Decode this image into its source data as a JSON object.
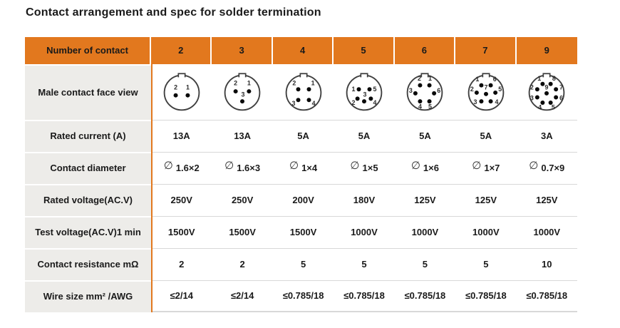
{
  "title": "Contact arrangement and spec for solder termination",
  "colors": {
    "orange": "#E2781E",
    "left_column_bg": "#EDECE9",
    "row_line": "#D8D8D8",
    "text": "#1A1A1A",
    "diagram_stroke": "#3F3F3F",
    "pin_dot": "#0A0A0A"
  },
  "table": {
    "header": {
      "label": "Number of contact",
      "columns": [
        "2",
        "3",
        "4",
        "5",
        "6",
        "7",
        "9"
      ]
    },
    "rows": [
      {
        "label": "Male contact face view",
        "type": "diagram"
      },
      {
        "label": "Rated current (A)",
        "values": [
          "13A",
          "13A",
          "5A",
          "5A",
          "5A",
          "5A",
          "3A"
        ]
      },
      {
        "label": "Contact diameter",
        "type": "diameter",
        "symbol": "∅",
        "values": [
          "1.6×2",
          "1.6×3",
          "1×4",
          "1×5",
          "1×6",
          "1×7",
          "0.7×9"
        ]
      },
      {
        "label": "Rated voltage(AC.V)",
        "values": [
          "250V",
          "250V",
          "200V",
          "180V",
          "125V",
          "125V",
          "125V"
        ]
      },
      {
        "label": "Test voltage(AC.V)1 min",
        "values": [
          "1500V",
          "1500V",
          "1500V",
          "1000V",
          "1000V",
          "1000V",
          "1000V"
        ]
      },
      {
        "label": "Contact resistance mΩ",
        "values": [
          "2",
          "2",
          "5",
          "5",
          "5",
          "5",
          "10"
        ]
      },
      {
        "label": "Wire size mm² /AWG",
        "values": [
          "≤2/14",
          "≤2/14",
          "≤0.785/18",
          "≤0.785/18",
          "≤0.785/18",
          "≤0.785/18",
          "≤0.785/18"
        ]
      }
    ],
    "face_views": [
      {
        "pins": [
          [
            23,
            37
          ],
          [
            41,
            37
          ]
        ],
        "labels": [
          [
            "2",
            23,
            28
          ],
          [
            "1",
            41,
            28
          ]
        ]
      },
      {
        "pins": [
          [
            22,
            31
          ],
          [
            42,
            31
          ],
          [
            32,
            46
          ]
        ],
        "labels": [
          [
            "2",
            22,
            22
          ],
          [
            "1",
            42,
            22
          ],
          [
            "3",
            33,
            39
          ]
        ]
      },
      {
        "pins": [
          [
            24,
            28
          ],
          [
            40,
            28
          ],
          [
            24,
            44
          ],
          [
            40,
            44
          ]
        ],
        "labels": [
          [
            "2",
            18,
            22
          ],
          [
            "1",
            46,
            22
          ],
          [
            "3",
            17,
            52
          ],
          [
            "4",
            47,
            52
          ]
        ]
      },
      {
        "pins": [
          [
            24,
            28
          ],
          [
            40,
            28
          ],
          [
            22,
            42
          ],
          [
            32,
            46
          ],
          [
            42,
            42
          ]
        ],
        "labels": [
          [
            "1",
            16,
            31
          ],
          [
            "5",
            48,
            31
          ],
          [
            "2",
            16,
            51
          ],
          [
            "3",
            33,
            39
          ],
          [
            "4",
            48,
            51
          ]
        ]
      },
      {
        "pins": [
          [
            25,
            22
          ],
          [
            39,
            22
          ],
          [
            18,
            34
          ],
          [
            46,
            34
          ],
          [
            25,
            46
          ],
          [
            39,
            46
          ]
        ],
        "labels": [
          [
            "2",
            24,
            15
          ],
          [
            "1",
            40,
            15
          ],
          [
            "3",
            11,
            33
          ],
          [
            "6",
            53,
            33
          ],
          [
            "4",
            25,
            57
          ],
          [
            "5",
            40,
            57
          ]
        ]
      },
      {
        "pins": [
          [
            25,
            22
          ],
          [
            39,
            22
          ],
          [
            18,
            33
          ],
          [
            46,
            33
          ],
          [
            25,
            46
          ],
          [
            39,
            46
          ],
          [
            32,
            35
          ]
        ],
        "labels": [
          [
            "1",
            19,
            16
          ],
          [
            "6",
            45,
            16
          ],
          [
            "2",
            11,
            31
          ],
          [
            "5",
            53,
            31
          ],
          [
            "3",
            16,
            50
          ],
          [
            "4",
            48,
            50
          ],
          [
            "7",
            32,
            28
          ]
        ]
      },
      {
        "pins": [
          [
            26,
            20
          ],
          [
            38,
            20
          ],
          [
            18,
            28
          ],
          [
            46,
            28
          ],
          [
            18,
            40
          ],
          [
            46,
            40
          ],
          [
            26,
            48
          ],
          [
            38,
            48
          ],
          [
            32,
            34
          ]
        ],
        "labels": [
          [
            "1",
            21,
            15
          ],
          [
            "8",
            43,
            15
          ],
          [
            "2",
            10,
            28
          ],
          [
            "7",
            54,
            28
          ],
          [
            "3",
            10,
            44
          ],
          [
            "6",
            54,
            44
          ],
          [
            "4",
            22,
            58
          ],
          [
            "5",
            42,
            58
          ],
          [
            "9",
            32,
            28
          ]
        ]
      }
    ]
  }
}
